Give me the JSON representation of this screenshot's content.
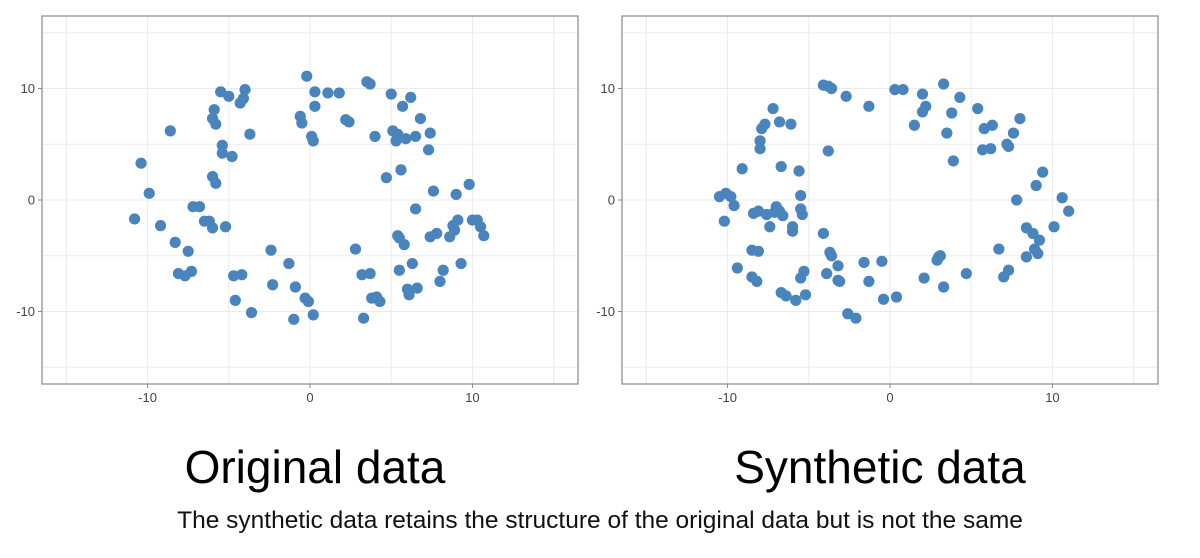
{
  "captions": {
    "left": "Original data",
    "right": "Synthetic data",
    "footnote": "The synthetic data retains the structure of the original data but is not the same"
  },
  "colors": {
    "point": "#4a84bd",
    "grid": "#ebebeb",
    "frame": "#888888",
    "tick_text": "#444444"
  },
  "chart_data": [
    {
      "type": "scatter",
      "title": "",
      "xlabel": "",
      "ylabel": "",
      "xlim": [
        -16.5,
        16.5
      ],
      "ylim": [
        -16.5,
        16.5
      ],
      "x_ticks": [
        -10,
        0,
        10
      ],
      "y_ticks": [
        -10,
        0,
        10
      ],
      "x_tick_labels": [
        "-10",
        "0",
        "10"
      ],
      "y_tick_labels": [
        "-10",
        "0",
        "10"
      ],
      "grid": true,
      "points": [
        [
          -10.8,
          -1.7
        ],
        [
          -10.4,
          3.3
        ],
        [
          -9.9,
          0.6
        ],
        [
          -9.2,
          -2.3
        ],
        [
          -8.6,
          6.2
        ],
        [
          -8.3,
          -3.8
        ],
        [
          -8.1,
          -6.6
        ],
        [
          -7.7,
          -6.8
        ],
        [
          -7.5,
          -4.6
        ],
        [
          -7.3,
          -6.4
        ],
        [
          -7.2,
          -0.6
        ],
        [
          -6.8,
          -0.6
        ],
        [
          -6.5,
          -1.9
        ],
        [
          -6.2,
          -1.9
        ],
        [
          -6.0,
          2.1
        ],
        [
          -5.8,
          1.5
        ],
        [
          -6.0,
          -2.5
        ],
        [
          -5.9,
          8.1
        ],
        [
          -6.0,
          7.3
        ],
        [
          -5.8,
          6.8
        ],
        [
          -5.5,
          9.7
        ],
        [
          -5.4,
          4.9
        ],
        [
          -5.4,
          4.2
        ],
        [
          -5.2,
          -2.4
        ],
        [
          -5.0,
          9.3
        ],
        [
          -4.8,
          3.9
        ],
        [
          -4.7,
          -6.8
        ],
        [
          -4.6,
          -9.0
        ],
        [
          -4.3,
          8.7
        ],
        [
          -4.1,
          9.1
        ],
        [
          -4.0,
          9.9
        ],
        [
          -4.2,
          -6.7
        ],
        [
          -3.7,
          5.9
        ],
        [
          -3.6,
          -10.1
        ],
        [
          -2.4,
          -4.5
        ],
        [
          -2.3,
          -7.6
        ],
        [
          -1.3,
          -5.7
        ],
        [
          -1.0,
          -10.7
        ],
        [
          -0.9,
          -7.8
        ],
        [
          -0.6,
          7.5
        ],
        [
          -0.5,
          6.9
        ],
        [
          -0.3,
          -8.8
        ],
        [
          -0.1,
          -9.1
        ],
        [
          -0.2,
          11.1
        ],
        [
          0.1,
          5.7
        ],
        [
          0.2,
          -10.3
        ],
        [
          0.2,
          5.3
        ],
        [
          0.3,
          9.7
        ],
        [
          0.3,
          8.4
        ],
        [
          1.1,
          9.6
        ],
        [
          1.8,
          9.6
        ],
        [
          2.2,
          7.2
        ],
        [
          2.4,
          7.0
        ],
        [
          2.8,
          -4.4
        ],
        [
          3.2,
          -6.7
        ],
        [
          3.3,
          -10.6
        ],
        [
          3.5,
          10.6
        ],
        [
          3.7,
          10.4
        ],
        [
          3.7,
          -6.6
        ],
        [
          3.8,
          -8.8
        ],
        [
          4.0,
          5.7
        ],
        [
          4.1,
          -8.7
        ],
        [
          4.3,
          -9.1
        ],
        [
          4.7,
          2.0
        ],
        [
          5.0,
          9.5
        ],
        [
          5.1,
          6.2
        ],
        [
          5.4,
          5.9
        ],
        [
          5.3,
          5.3
        ],
        [
          5.4,
          -3.2
        ],
        [
          5.5,
          -3.4
        ],
        [
          5.5,
          -6.3
        ],
        [
          5.6,
          2.7
        ],
        [
          5.7,
          8.4
        ],
        [
          5.8,
          -4.0
        ],
        [
          5.9,
          5.5
        ],
        [
          6.0,
          -8.0
        ],
        [
          6.1,
          -8.5
        ],
        [
          6.3,
          -5.7
        ],
        [
          6.2,
          9.2
        ],
        [
          6.5,
          -0.8
        ],
        [
          6.5,
          5.7
        ],
        [
          6.6,
          -7.9
        ],
        [
          6.8,
          7.3
        ],
        [
          7.3,
          4.5
        ],
        [
          7.4,
          6.0
        ],
        [
          7.4,
          -3.3
        ],
        [
          7.6,
          0.8
        ],
        [
          7.8,
          -3.0
        ],
        [
          8.0,
          -7.3
        ],
        [
          8.2,
          -6.3
        ],
        [
          8.6,
          -3.3
        ],
        [
          8.8,
          -2.3
        ],
        [
          8.9,
          -2.7
        ],
        [
          9.0,
          0.5
        ],
        [
          9.1,
          -1.8
        ],
        [
          9.3,
          -5.7
        ],
        [
          9.8,
          1.4
        ],
        [
          10.0,
          -1.8
        ],
        [
          10.3,
          -1.8
        ],
        [
          10.5,
          -2.4
        ],
        [
          10.7,
          -3.2
        ]
      ]
    },
    {
      "type": "scatter",
      "title": "",
      "xlabel": "",
      "ylabel": "",
      "xlim": [
        -16.5,
        16.5
      ],
      "ylim": [
        -16.5,
        16.5
      ],
      "x_ticks": [
        -10,
        0,
        10
      ],
      "y_ticks": [
        -10,
        0,
        10
      ],
      "x_tick_labels": [
        "-10",
        "0",
        "10"
      ],
      "y_tick_labels": [
        "-10",
        "0",
        "10"
      ],
      "grid": true,
      "points": [
        [
          -10.5,
          0.3
        ],
        [
          -10.1,
          0.6
        ],
        [
          -10.2,
          -1.9
        ],
        [
          -9.8,
          0.3
        ],
        [
          -9.6,
          -0.5
        ],
        [
          -9.4,
          -6.1
        ],
        [
          -9.1,
          2.8
        ],
        [
          -8.5,
          -6.9
        ],
        [
          -8.5,
          -4.5
        ],
        [
          -8.4,
          -1.2
        ],
        [
          -8.2,
          -7.3
        ],
        [
          -8.1,
          -1.0
        ],
        [
          -8.0,
          5.3
        ],
        [
          -8.0,
          4.6
        ],
        [
          -8.1,
          -4.6
        ],
        [
          -7.9,
          6.4
        ],
        [
          -7.7,
          6.8
        ],
        [
          -7.6,
          -1.3
        ],
        [
          -7.4,
          -2.4
        ],
        [
          -7.2,
          8.2
        ],
        [
          -7.1,
          -1.1
        ],
        [
          -7.0,
          -0.6
        ],
        [
          -6.8,
          7.0
        ],
        [
          -6.8,
          -1.0
        ],
        [
          -6.7,
          -8.3
        ],
        [
          -6.7,
          3.0
        ],
        [
          -6.6,
          -1.4
        ],
        [
          -6.4,
          -8.6
        ],
        [
          -6.1,
          6.8
        ],
        [
          -6.0,
          -2.4
        ],
        [
          -6.0,
          -2.8
        ],
        [
          -5.8,
          -9.0
        ],
        [
          -5.6,
          2.6
        ],
        [
          -5.5,
          0.4
        ],
        [
          -5.5,
          -0.8
        ],
        [
          -5.5,
          -7.0
        ],
        [
          -5.4,
          -1.3
        ],
        [
          -5.3,
          -6.4
        ],
        [
          -5.2,
          -8.5
        ],
        [
          -4.1,
          10.3
        ],
        [
          -4.1,
          -3.0
        ],
        [
          -3.9,
          -6.6
        ],
        [
          -3.8,
          4.4
        ],
        [
          -3.8,
          10.2
        ],
        [
          -3.6,
          10.0
        ],
        [
          -3.7,
          -4.7
        ],
        [
          -3.6,
          -5.0
        ],
        [
          -3.2,
          -5.9
        ],
        [
          -3.2,
          -7.2
        ],
        [
          -3.1,
          -7.3
        ],
        [
          -2.7,
          9.3
        ],
        [
          -2.6,
          -10.2
        ],
        [
          -2.1,
          -10.6
        ],
        [
          -1.6,
          -5.6
        ],
        [
          -1.3,
          8.4
        ],
        [
          -1.3,
          -7.3
        ],
        [
          -0.5,
          -5.5
        ],
        [
          -0.4,
          -8.9
        ],
        [
          0.3,
          9.9
        ],
        [
          0.4,
          -8.7
        ],
        [
          0.8,
          9.9
        ],
        [
          1.5,
          6.7
        ],
        [
          2.0,
          7.9
        ],
        [
          2.0,
          9.5
        ],
        [
          2.1,
          -7.0
        ],
        [
          2.2,
          8.4
        ],
        [
          2.9,
          -5.4
        ],
        [
          3.0,
          -5.1
        ],
        [
          3.1,
          -5.0
        ],
        [
          3.3,
          10.4
        ],
        [
          3.3,
          -7.8
        ],
        [
          3.5,
          6.0
        ],
        [
          3.8,
          7.8
        ],
        [
          3.9,
          3.5
        ],
        [
          4.3,
          9.2
        ],
        [
          4.7,
          -6.6
        ],
        [
          5.4,
          8.2
        ],
        [
          5.7,
          4.5
        ],
        [
          5.8,
          6.4
        ],
        [
          6.2,
          4.6
        ],
        [
          6.3,
          6.7
        ],
        [
          6.7,
          -4.4
        ],
        [
          7.0,
          -6.9
        ],
        [
          7.2,
          5.0
        ],
        [
          7.3,
          4.8
        ],
        [
          7.3,
          -6.3
        ],
        [
          7.6,
          6.0
        ],
        [
          7.8,
          0.0
        ],
        [
          8.0,
          7.3
        ],
        [
          8.4,
          -2.5
        ],
        [
          8.4,
          -5.1
        ],
        [
          8.8,
          -3.0
        ],
        [
          8.9,
          -4.4
        ],
        [
          9.0,
          1.3
        ],
        [
          9.1,
          -4.8
        ],
        [
          9.2,
          -3.6
        ],
        [
          9.4,
          2.5
        ],
        [
          10.1,
          -2.4
        ],
        [
          10.6,
          0.2
        ],
        [
          11.0,
          -1.0
        ]
      ]
    }
  ]
}
